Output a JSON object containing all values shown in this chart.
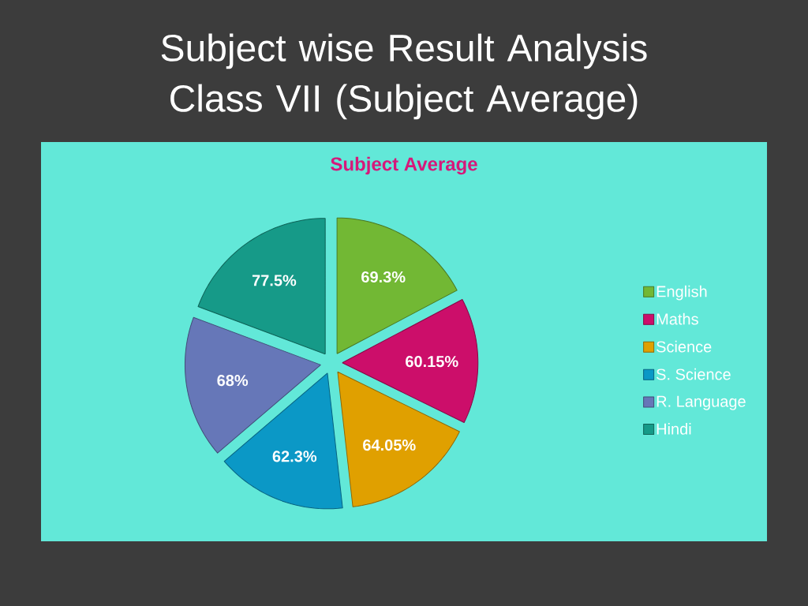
{
  "chart_data": {
    "type": "pie",
    "title": "Subject wise Result Analysis Class VII (Subject Average)",
    "subtitle": "Subject Average",
    "categories": [
      "English",
      "Maths",
      "Science",
      "S. Science",
      "R. Language",
      "Hindi"
    ],
    "values": [
      69.3,
      60.15,
      64.05,
      62.3,
      68,
      77.5
    ],
    "value_labels": [
      "69.3%",
      "60.15%",
      "64.05%",
      "62.3%",
      "68%",
      "77.5%"
    ],
    "colors": [
      "#72b834",
      "#cc0e6a",
      "#e0a000",
      "#0b98c6",
      "#6677b8",
      "#169a88"
    ],
    "legend": "right"
  }
}
